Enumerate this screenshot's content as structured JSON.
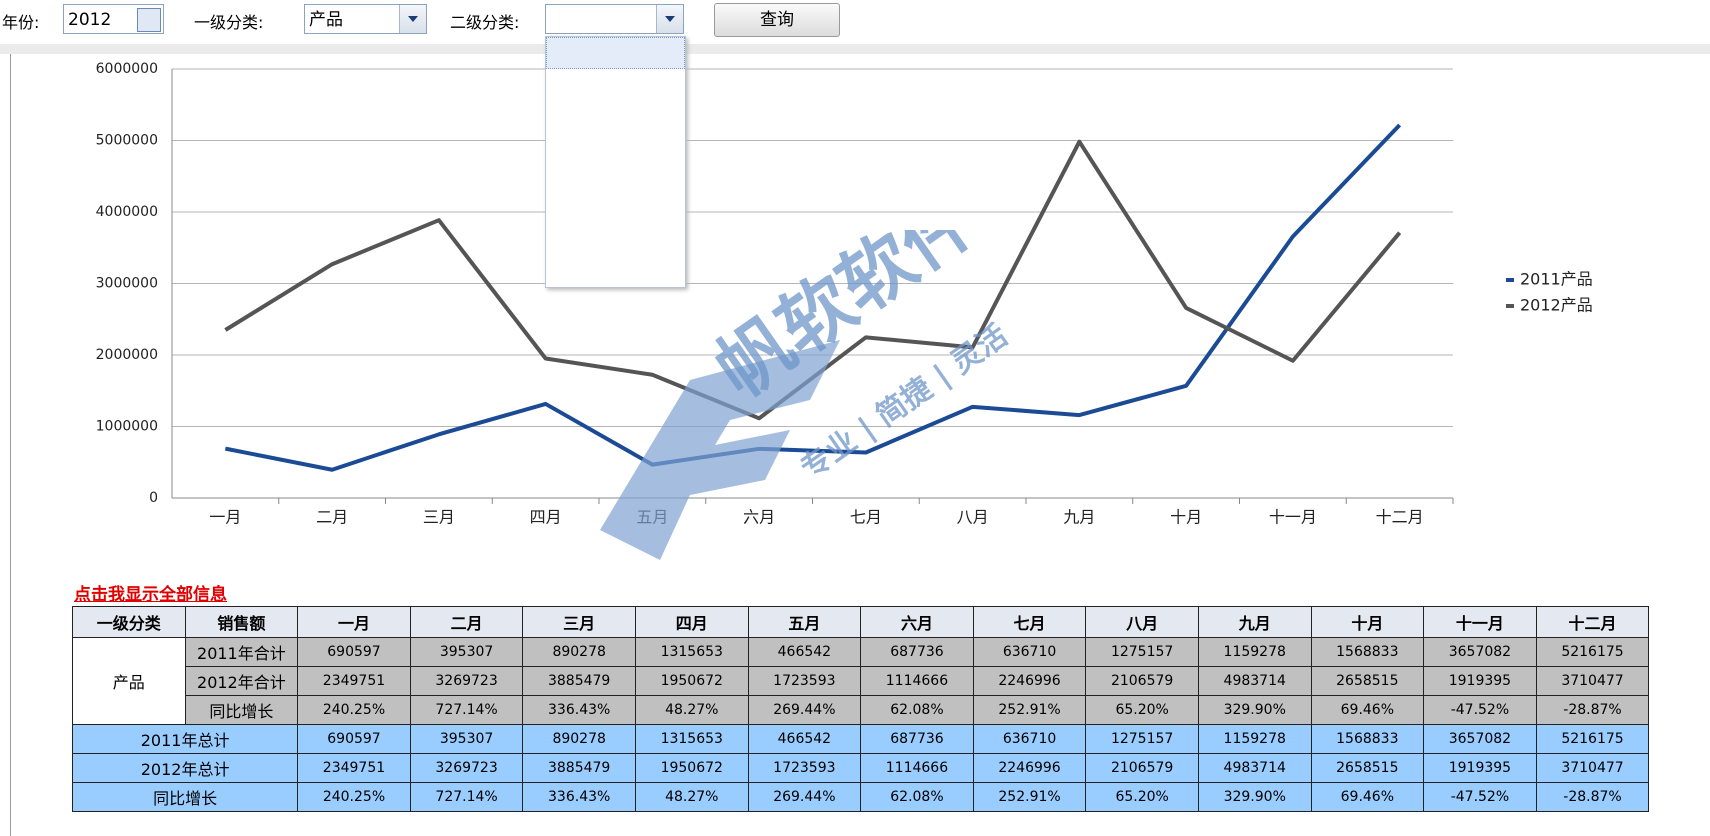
{
  "filters": {
    "year_label": "年份:",
    "year": "2012",
    "cat1_label": "一级分类:",
    "cat1": "产品",
    "cat2_label": "二级分类:",
    "button": "查询"
  },
  "chart_data": {
    "type": "line",
    "categories": [
      "一月",
      "二月",
      "三月",
      "四月",
      "五月",
      "六月",
      "七月",
      "八月",
      "九月",
      "十月",
      "十一月",
      "十二月"
    ],
    "series": [
      {
        "name": "2011产品",
        "color": "#1b4b95",
        "values": [
          690597,
          395307,
          890278,
          1315653,
          466542,
          687736,
          636710,
          1275157,
          1159278,
          1568833,
          3657082,
          5216175
        ]
      },
      {
        "name": "2012产品",
        "color": "#555555",
        "values": [
          2349751,
          3269723,
          3885479,
          1950672,
          1723593,
          1114666,
          2246996,
          2106579,
          4983714,
          2658515,
          1919395,
          3710477
        ]
      }
    ],
    "ylim": [
      0,
      6000000
    ],
    "yticks": [
      0,
      1000000,
      2000000,
      3000000,
      4000000,
      5000000,
      6000000
    ],
    "grid": true,
    "legend": "right"
  },
  "watermark": {
    "brand": "帆软软件",
    "slogan": "专业 | 简捷 | 灵活"
  },
  "table": {
    "link": "点击我显示全部信息",
    "headers": [
      "一级分类",
      "销售额"
    ],
    "group": "产品",
    "rows": [
      "2011年合计",
      "2012年合计",
      "同比增长"
    ],
    "totals": [
      "2011年总计",
      "2012年总计",
      "同比增长"
    ],
    "growth": [
      "240.25%",
      "727.14%",
      "336.43%",
      "48.27%",
      "269.44%",
      "62.08%",
      "252.91%",
      "65.20%",
      "329.90%",
      "69.46%",
      "-47.52%",
      "-28.87%"
    ]
  }
}
